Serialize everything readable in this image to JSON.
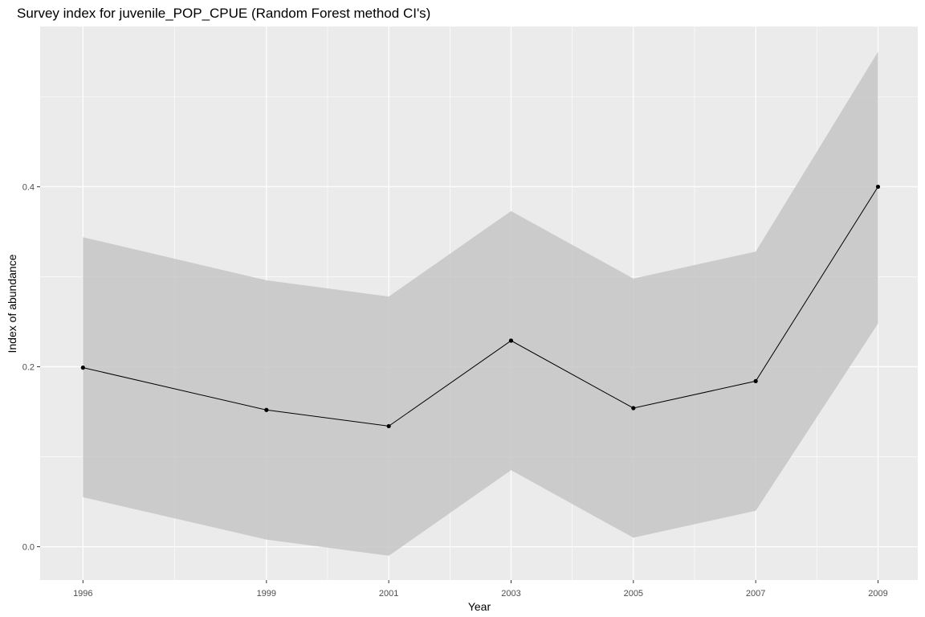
{
  "chart_data": {
    "type": "line",
    "title": "Survey index for juvenile_POP_CPUE (Random Forest method CI's)",
    "xlabel": "Year",
    "ylabel": "Index of abundance",
    "x": [
      1996,
      1999,
      2001,
      2003,
      2005,
      2007,
      2009
    ],
    "series": [
      {
        "values": [
          0.199,
          0.152,
          0.134,
          0.229,
          0.154,
          0.184,
          0.4
        ],
        "lower": [
          0.055,
          0.008,
          -0.01,
          0.085,
          0.01,
          0.04,
          0.248
        ],
        "upper": [
          0.344,
          0.296,
          0.278,
          0.373,
          0.298,
          0.328,
          0.55
        ]
      }
    ],
    "x_ticks": [
      "1996",
      "1999",
      "2001",
      "2003",
      "2005",
      "2007",
      "2009"
    ],
    "y_ticks": [
      "0.0",
      "0.2",
      "0.4"
    ],
    "xlim": [
      1995.3,
      2009.65
    ],
    "ylim": [
      -0.037,
      0.578
    ],
    "grid": true,
    "colors": {
      "panel": "#ebebeb",
      "grid": "#ffffff",
      "ribbon": "#c6c6c6",
      "line": "#000000"
    }
  }
}
